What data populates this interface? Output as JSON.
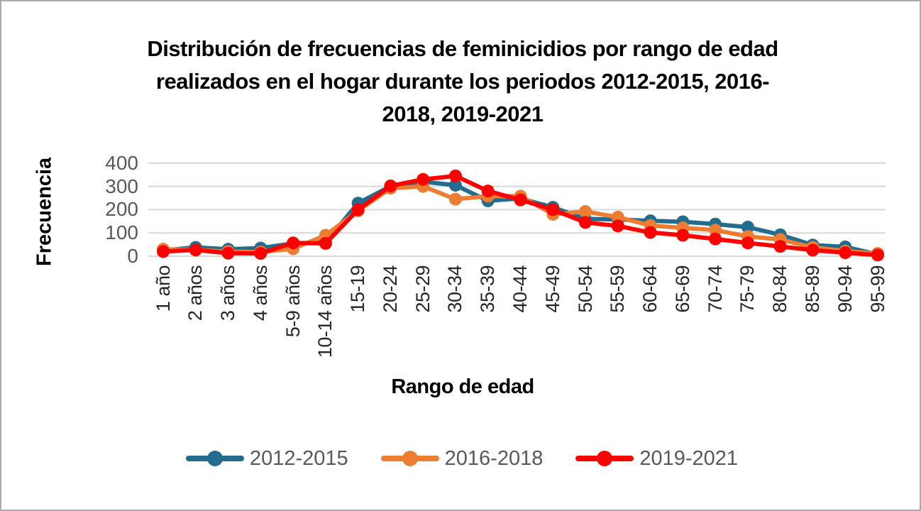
{
  "chart_data": {
    "type": "line",
    "title": "Distribución de frecuencias de feminicidios por rango de edad realizados en el hogar durante los periodos 2012-2015, 2016-2018, 2019-2021",
    "title_lines": [
      "Distribución de frecuencias de feminicidios por rango de edad",
      "realizados en el hogar durante los periodos 2012-2015, 2016-",
      "2018, 2019-2021"
    ],
    "xlabel": "Rango de edad",
    "ylabel": "Frecuencia",
    "ylim": [
      0,
      400
    ],
    "y_ticks": [
      0,
      100,
      200,
      300,
      400
    ],
    "grid": "horizontal",
    "legend_position": "bottom",
    "categories": [
      "1 año",
      "2 años",
      "3 años",
      "4 años",
      "5-9 años",
      "10-14 años",
      "15-19",
      "20-24",
      "25-29",
      "30-34",
      "35-39",
      "40-44",
      "45-49",
      "50-54",
      "55-59",
      "60-64",
      "65-69",
      "70-74",
      "75-79",
      "80-84",
      "85-89",
      "90-94",
      "95-99"
    ],
    "series": [
      {
        "name": "2012-2015",
        "color": "#226C8E",
        "values": [
          25,
          38,
          30,
          35,
          55,
          60,
          228,
          300,
          320,
          305,
          238,
          248,
          210,
          160,
          158,
          152,
          148,
          138,
          125,
          92,
          48,
          40,
          8
        ]
      },
      {
        "name": "2016-2018",
        "color": "#ED7D31",
        "values": [
          30,
          27,
          20,
          18,
          32,
          90,
          195,
          292,
          300,
          245,
          258,
          258,
          180,
          192,
          168,
          132,
          122,
          112,
          85,
          72,
          38,
          22,
          12
        ]
      },
      {
        "name": "2019-2021",
        "color": "#FF0000",
        "values": [
          20,
          27,
          13,
          12,
          57,
          55,
          200,
          302,
          330,
          345,
          280,
          242,
          200,
          145,
          130,
          102,
          90,
          74,
          57,
          42,
          26,
          15,
          5
        ]
      }
    ]
  },
  "colors": {
    "background": "#FFFFFF",
    "border": "#ABABAB",
    "title_text": "#000000",
    "axis_title_text": "#000000",
    "y_tick_text": "#595959",
    "x_tick_text": "#262626",
    "legend_text": "#595959",
    "gridline": "#D9D9D9"
  }
}
